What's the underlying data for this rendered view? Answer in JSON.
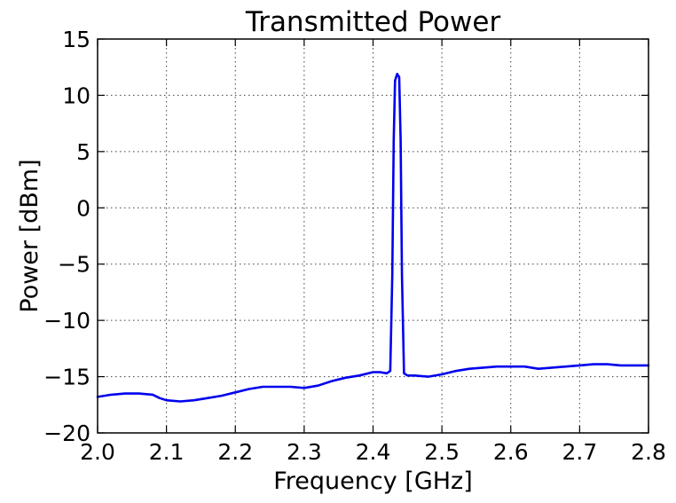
{
  "chart_data": {
    "type": "line",
    "title": "Transmitted Power",
    "xlabel": "Frequency [GHz]",
    "ylabel": "Power [dBm]",
    "xlim": [
      2.0,
      2.8
    ],
    "ylim": [
      -20,
      15
    ],
    "x_ticks": [
      2.0,
      2.1,
      2.2,
      2.3,
      2.4,
      2.5,
      2.6,
      2.7,
      2.8
    ],
    "x_tick_labels": [
      "2.0",
      "2.1",
      "2.2",
      "2.3",
      "2.4",
      "2.5",
      "2.6",
      "2.7",
      "2.8"
    ],
    "y_ticks": [
      -20,
      -15,
      -10,
      -5,
      0,
      5,
      10,
      15
    ],
    "y_tick_labels": [
      "−20",
      "−15",
      "−10",
      "−5",
      "0",
      "5",
      "10",
      "15"
    ],
    "grid": true,
    "legend": "none",
    "series": [
      {
        "color": "#0000ee",
        "x": [
          2.0,
          2.02,
          2.04,
          2.06,
          2.08,
          2.09,
          2.1,
          2.12,
          2.14,
          2.16,
          2.18,
          2.2,
          2.22,
          2.24,
          2.26,
          2.28,
          2.3,
          2.32,
          2.34,
          2.36,
          2.38,
          2.4,
          2.41,
          2.42,
          2.425,
          2.428,
          2.43,
          2.432,
          2.435,
          2.438,
          2.44,
          2.442,
          2.445,
          2.45,
          2.46,
          2.48,
          2.5,
          2.52,
          2.54,
          2.56,
          2.58,
          2.6,
          2.62,
          2.64,
          2.66,
          2.68,
          2.7,
          2.72,
          2.74,
          2.76,
          2.78,
          2.8
        ],
        "y": [
          -16.8,
          -16.6,
          -16.5,
          -16.5,
          -16.6,
          -16.9,
          -17.1,
          -17.2,
          -17.1,
          -16.9,
          -16.7,
          -16.4,
          -16.1,
          -15.9,
          -15.9,
          -15.9,
          -16.0,
          -15.8,
          -15.4,
          -15.1,
          -14.9,
          -14.6,
          -14.6,
          -14.7,
          -14.5,
          -6.0,
          6.0,
          11.3,
          11.9,
          11.6,
          6.0,
          -6.0,
          -14.7,
          -14.9,
          -14.9,
          -15.0,
          -14.8,
          -14.5,
          -14.3,
          -14.2,
          -14.1,
          -14.1,
          -14.1,
          -14.3,
          -14.2,
          -14.1,
          -14.0,
          -13.9,
          -13.9,
          -14.0,
          -14.0,
          -14.0
        ]
      }
    ]
  }
}
